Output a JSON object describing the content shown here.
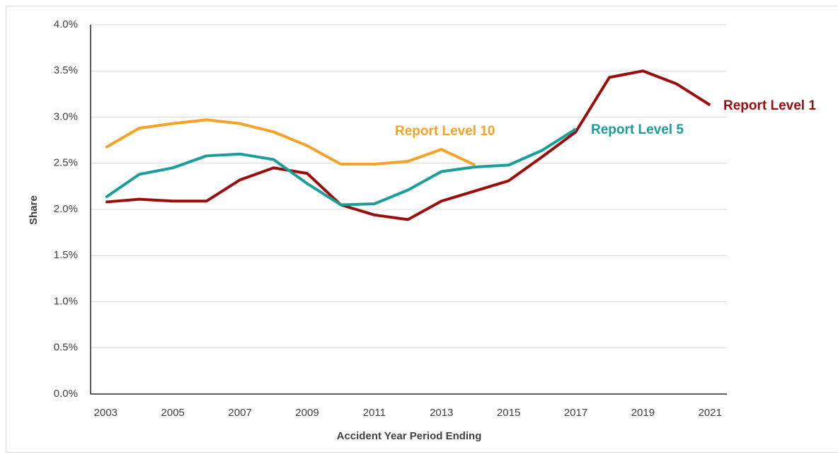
{
  "chart_data": {
    "type": "line",
    "xlabel": "Accident Year Period Ending",
    "ylabel": "Share",
    "x": [
      2003,
      2004,
      2005,
      2006,
      2007,
      2008,
      2009,
      2010,
      2011,
      2012,
      2013,
      2014,
      2015,
      2016,
      2017,
      2018,
      2019,
      2020,
      2021
    ],
    "series": [
      {
        "name": "Report Level 1",
        "color": "#9b0d0d",
        "values": [
          2.08,
          2.11,
          2.09,
          2.09,
          2.32,
          2.45,
          2.39,
          2.05,
          1.94,
          1.89,
          2.09,
          2.2,
          2.31,
          2.57,
          2.84,
          3.43,
          3.5,
          3.36,
          3.13
        ]
      },
      {
        "name": "Report Level 5",
        "color": "#1a9e9a",
        "values": [
          2.13,
          2.38,
          2.45,
          2.58,
          2.6,
          2.54,
          2.28,
          2.05,
          2.06,
          2.21,
          2.41,
          2.46,
          2.48,
          2.64,
          2.87,
          null,
          null,
          null,
          null
        ]
      },
      {
        "name": "Report Level 10",
        "color": "#f5a227",
        "values": [
          2.67,
          2.88,
          2.93,
          2.97,
          2.93,
          2.84,
          2.69,
          2.49,
          2.49,
          2.52,
          2.65,
          2.48,
          null,
          null,
          null,
          null,
          null,
          null,
          null
        ]
      }
    ],
    "xlim": [
      2002.55,
      2021.5
    ],
    "xticks": [
      2003,
      2005,
      2007,
      2009,
      2011,
      2013,
      2015,
      2017,
      2019,
      2021
    ],
    "ylim": [
      0,
      4
    ],
    "yticks": [
      {
        "value": 0,
        "label": "0.0%"
      },
      {
        "value": 0.5,
        "label": "0.5%"
      },
      {
        "value": 1,
        "label": "1.0%"
      },
      {
        "value": 1.5,
        "label": "1.5%"
      },
      {
        "value": 2,
        "label": "2.0%"
      },
      {
        "value": 2.5,
        "label": "2.5%"
      },
      {
        "value": 3,
        "label": "3.0%"
      },
      {
        "value": 3.5,
        "label": "3.5%"
      },
      {
        "value": 4,
        "label": "4.0%"
      }
    ],
    "grid": true
  }
}
